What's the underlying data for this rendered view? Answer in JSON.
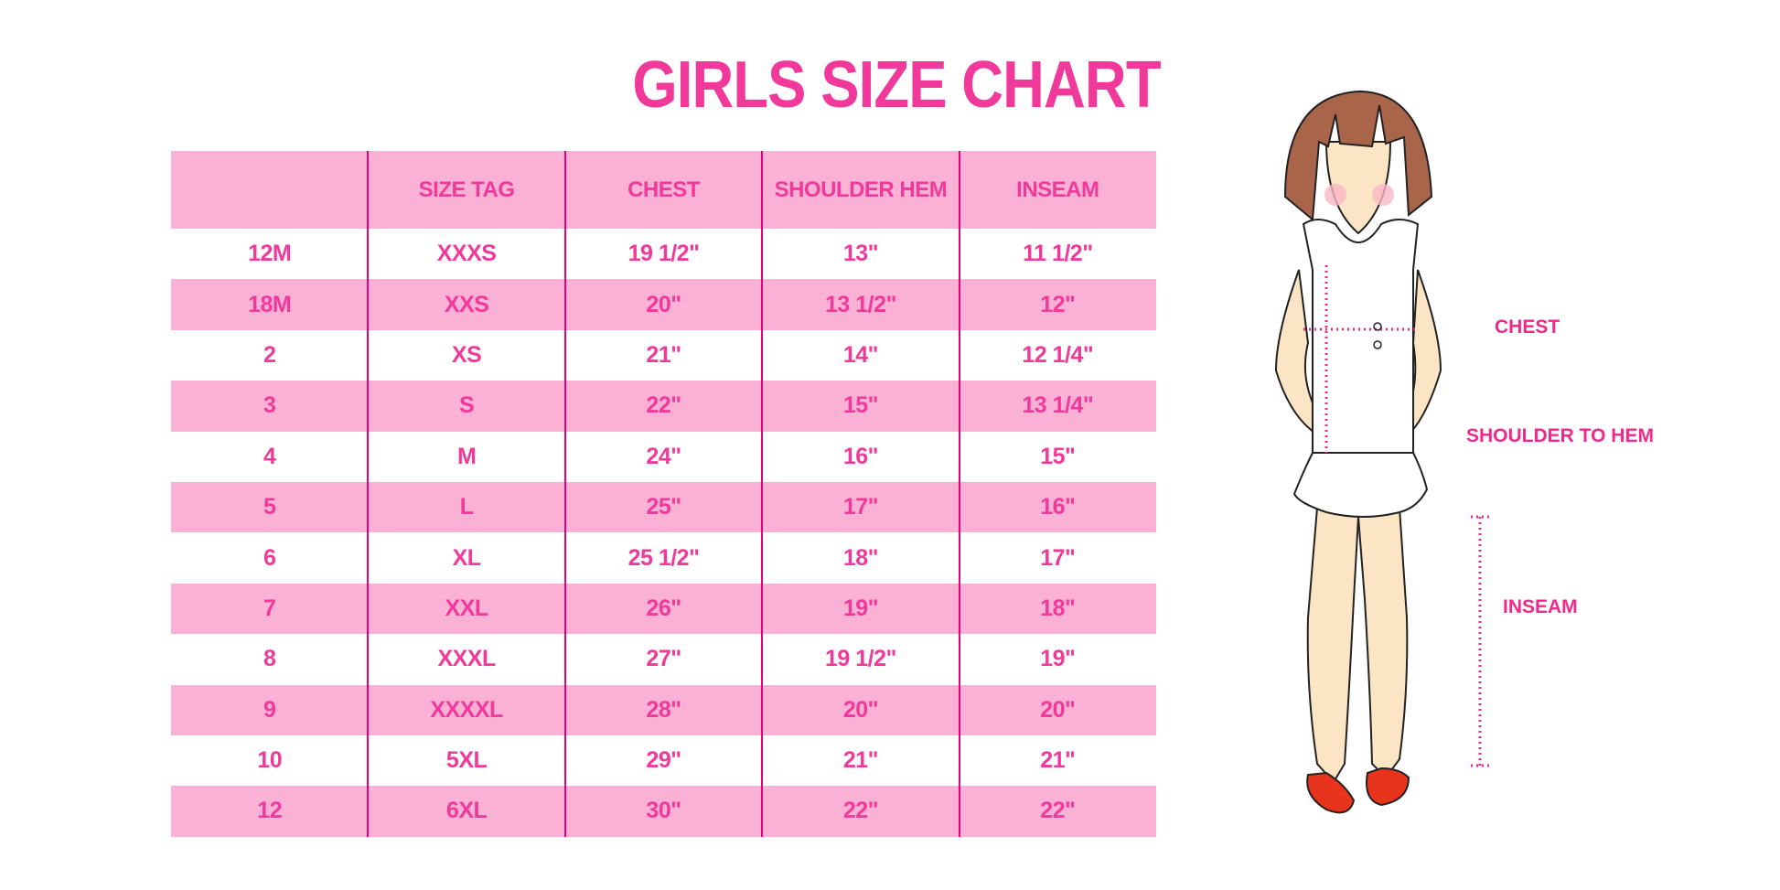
{
  "title": "GIRLS SIZE CHART",
  "table": {
    "headers": [
      "",
      "SIZE TAG",
      "CHEST",
      "SHOULDER HEM",
      "INSEAM"
    ],
    "rows": [
      [
        "12M",
        "XXXS",
        "19 1/2\"",
        "13\"",
        "11 1/2\""
      ],
      [
        "18M",
        "XXS",
        "20\"",
        "13 1/2\"",
        "12\""
      ],
      [
        "2",
        "XS",
        "21\"",
        "14\"",
        "12 1/4\""
      ],
      [
        "3",
        "S",
        "22\"",
        "15\"",
        "13 1/4\""
      ],
      [
        "4",
        "M",
        "24\"",
        "16\"",
        "15\""
      ],
      [
        "5",
        "L",
        "25\"",
        "17\"",
        "16\""
      ],
      [
        "6",
        "XL",
        "25 1/2\"",
        "18\"",
        "17\""
      ],
      [
        "7",
        "XXL",
        "26\"",
        "19\"",
        "18\""
      ],
      [
        "8",
        "XXXL",
        "27\"",
        "19 1/2\"",
        "19\""
      ],
      [
        "9",
        "XXXXL",
        "28\"",
        "20\"",
        "20\""
      ],
      [
        "10",
        "5XL",
        "29\"",
        "21\"",
        "21\""
      ],
      [
        "12",
        "6XL",
        "30\"",
        "22\"",
        "22\""
      ]
    ]
  },
  "figure": {
    "labels": {
      "chest": "CHEST",
      "shoulder_to_hem": "SHOULDER TO HEM",
      "inseam": "INSEAM"
    }
  },
  "colors": {
    "accent": "#f0399a",
    "row_pink": "#fbb0d5",
    "divider": "#e6007e"
  }
}
